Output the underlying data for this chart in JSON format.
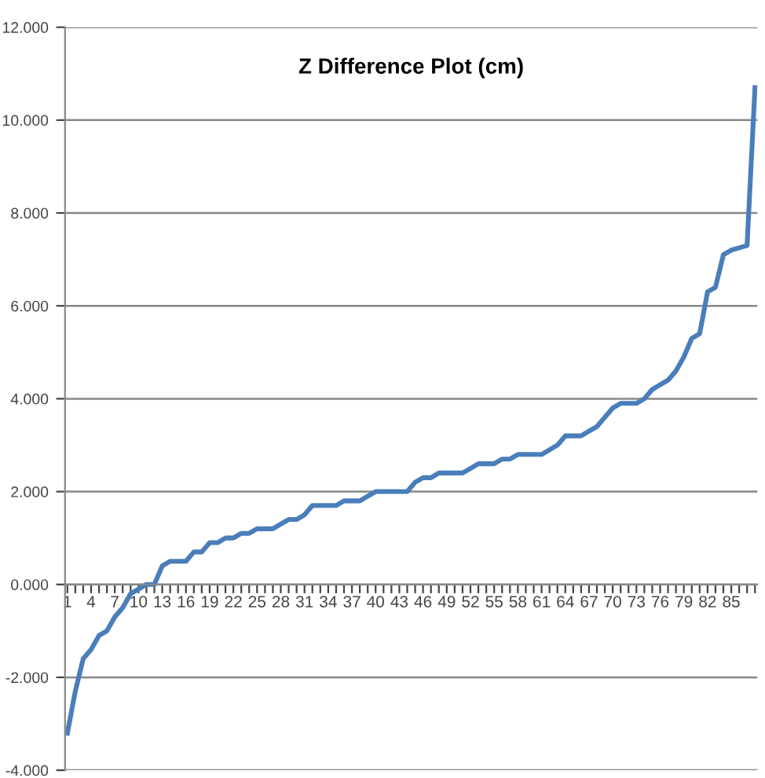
{
  "chart_data": {
    "type": "line",
    "title": "Z Difference Plot (cm)",
    "categories": [
      "1",
      null,
      null,
      "4",
      null,
      null,
      "7",
      null,
      null,
      "10",
      null,
      null,
      "13",
      null,
      null,
      "16",
      null,
      null,
      "19",
      null,
      null,
      "22",
      null,
      null,
      "25",
      null,
      null,
      "28",
      null,
      null,
      "31",
      null,
      null,
      "34",
      null,
      null,
      "37",
      null,
      null,
      "40",
      null,
      null,
      "43",
      null,
      null,
      "46",
      null,
      null,
      "49",
      null,
      null,
      "52",
      null,
      null,
      "55",
      null,
      null,
      "58",
      null,
      null,
      "61",
      null,
      null,
      "64",
      null,
      null,
      "67",
      null,
      null,
      "70",
      null,
      null,
      "73",
      null,
      null,
      "76",
      null,
      null,
      "79",
      null,
      null,
      "82",
      null,
      null,
      "85",
      null,
      null,
      null
    ],
    "series": [
      {
        "color": "#4a7ebb",
        "values": [
          -3.2,
          -2.3,
          -1.6,
          -1.4,
          -1.1,
          -1.0,
          -0.7,
          -0.5,
          -0.2,
          -0.1,
          0.0,
          0.0,
          0.4,
          0.5,
          0.5,
          0.5,
          0.7,
          0.7,
          0.9,
          0.9,
          1.0,
          1.0,
          1.1,
          1.1,
          1.2,
          1.2,
          1.2,
          1.3,
          1.4,
          1.4,
          1.5,
          1.7,
          1.7,
          1.7,
          1.7,
          1.8,
          1.8,
          1.8,
          1.9,
          2.0,
          2.0,
          2.0,
          2.0,
          2.0,
          2.2,
          2.3,
          2.3,
          2.4,
          2.4,
          2.4,
          2.4,
          2.5,
          2.6,
          2.6,
          2.6,
          2.7,
          2.7,
          2.8,
          2.8,
          2.8,
          2.8,
          2.9,
          3.0,
          3.2,
          3.2,
          3.2,
          3.3,
          3.4,
          3.6,
          3.8,
          3.9,
          3.9,
          3.9,
          4.0,
          4.2,
          4.3,
          4.4,
          4.6,
          4.9,
          5.3,
          5.4,
          6.3,
          6.4,
          7.1,
          7.2,
          7.25,
          7.3,
          10.7
        ]
      }
    ],
    "ylim": [
      -4,
      12
    ],
    "yticks": [
      {
        "value": -4,
        "label": "-4.000"
      },
      {
        "value": -2,
        "label": "-2.000"
      },
      {
        "value": 0,
        "label": "0.000"
      },
      {
        "value": 2,
        "label": "2.000"
      },
      {
        "value": 4,
        "label": "4.000"
      },
      {
        "value": 6,
        "label": "6.000"
      },
      {
        "value": 8,
        "label": "8.000"
      },
      {
        "value": 10,
        "label": "10.000"
      },
      {
        "value": 12,
        "label": "12.000"
      }
    ],
    "grid": "y",
    "marker": "none",
    "line_style": "solid"
  }
}
